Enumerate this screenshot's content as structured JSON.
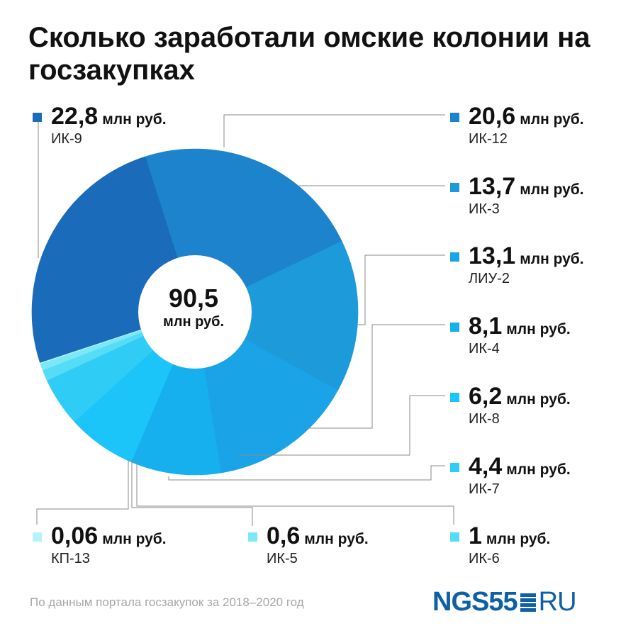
{
  "title": "Сколько заработали омские колонии на госзакупках",
  "center": {
    "value": "90,5",
    "unit": "млн руб."
  },
  "chart_data": {
    "type": "pie",
    "donut": true,
    "total": 90.5,
    "unit": "млн руб.",
    "slices": [
      {
        "label": "ИК-9",
        "display": "22,8",
        "unit": "млн руб.",
        "value": 22.8,
        "color": "#1a6bba"
      },
      {
        "label": "ИК-12",
        "display": "20,6",
        "unit": "млн руб.",
        "value": 20.6,
        "color": "#1c83cc"
      },
      {
        "label": "ИК-3",
        "display": "13,7",
        "unit": "млн руб.",
        "value": 13.7,
        "color": "#1d9ad9"
      },
      {
        "label": "ЛИУ-2",
        "display": "13,1",
        "unit": "млн руб.",
        "value": 13.1,
        "color": "#1aa3e6"
      },
      {
        "label": "ИК-4",
        "display": "8,1",
        "unit": "млн руб.",
        "value": 8.1,
        "color": "#17b0ee"
      },
      {
        "label": "ИК-8",
        "display": "6,2",
        "unit": "млн руб.",
        "value": 6.2,
        "color": "#1bc4f9"
      },
      {
        "label": "ИК-7",
        "display": "4,4",
        "unit": "млн руб.",
        "value": 4.4,
        "color": "#2fcdf5"
      },
      {
        "label": "ИК-6",
        "display": "1",
        "unit": "млн руб.",
        "value": 1.0,
        "color": "#55dcf6"
      },
      {
        "label": "ИК-5",
        "display": "0,6",
        "unit": "млн руб.",
        "value": 0.6,
        "color": "#7ce8f7"
      },
      {
        "label": "КП-13",
        "display": "0,06",
        "unit": "млн руб.",
        "value": 0.06,
        "color": "#b3f3fb"
      }
    ]
  },
  "footnote": "По данным портала госзакупок за 2018–2020 год",
  "logo": {
    "main": "NGS55",
    "suffix": "RU"
  }
}
